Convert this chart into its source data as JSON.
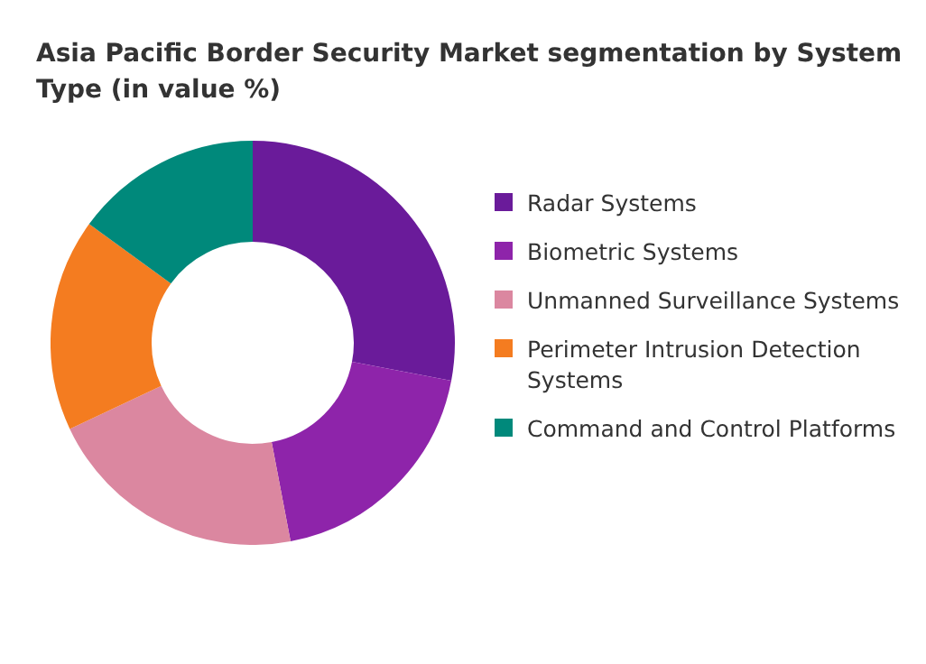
{
  "chart_data": {
    "type": "donut",
    "title": "Asia Pacific Border Security Market segmentation by System Type (in value %)",
    "categories": [
      "Radar Systems",
      "Biometric Systems",
      "Unmanned Surveillance Systems",
      "Perimeter Intrusion Detection Systems",
      "Command and Control Platforms"
    ],
    "values": [
      28,
      19,
      21,
      17,
      15
    ],
    "colors": [
      "#6a1b9a",
      "#8e24aa",
      "#db87a0",
      "#f47c20",
      "#00897b"
    ],
    "legend": "right"
  }
}
